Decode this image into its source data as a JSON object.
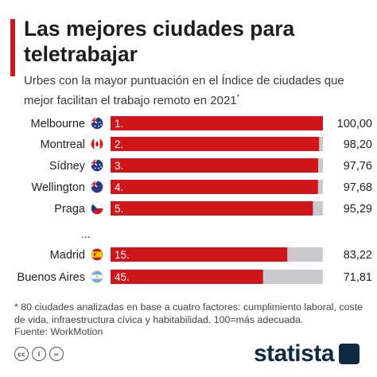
{
  "title": "Las mejores ciudades para teletrabajar",
  "subtitle": "Urbes con la mayor puntuación en el Índice de ciudades que mejor facilitan el trabajo remoto en 2021",
  "subtitle_mark": "*",
  "footnote": "* 80 ciudades analizadas en base a cuatro factores: cumplimiento laboral, coste de vida, infraestructura cívica y habitabilidad. 100=más adecuada.",
  "source": "Fuente: WorkMotion",
  "logo_text": "statista",
  "license_icons": [
    "cc",
    "i",
    "="
  ],
  "colors": {
    "bar": "#d0151b",
    "track": "#c8c9cc",
    "text": "#222222"
  },
  "chart_data": {
    "type": "bar",
    "orientation": "horizontal",
    "xlim": [
      0,
      100
    ],
    "gap_marker": "...",
    "rows": [
      {
        "city": "Melbourne",
        "flag": "au",
        "rank": "1.",
        "value": 100.0,
        "label": "100,00"
      },
      {
        "city": "Montreal",
        "flag": "ca",
        "rank": "2.",
        "value": 98.2,
        "label": "98,20"
      },
      {
        "city": "Sídney",
        "flag": "au",
        "rank": "3.",
        "value": 97.76,
        "label": "97,76"
      },
      {
        "city": "Wellington",
        "flag": "nz",
        "rank": "4.",
        "value": 97.68,
        "label": "97,68"
      },
      {
        "city": "Praga",
        "flag": "cz",
        "rank": "5.",
        "value": 95.29,
        "label": "95,29"
      },
      {
        "city": "Madrid",
        "flag": "es",
        "rank": "15.",
        "value": 83.22,
        "label": "83,22"
      },
      {
        "city": "Buenos Aires",
        "flag": "ar",
        "rank": "45.",
        "value": 71.81,
        "label": "71,81"
      }
    ]
  }
}
